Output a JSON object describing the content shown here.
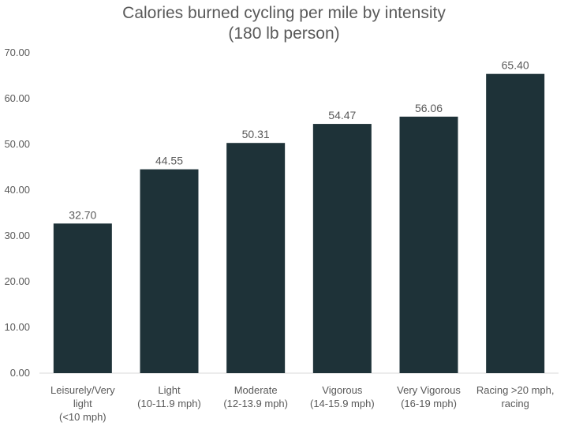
{
  "chart_data": {
    "type": "bar",
    "title": "Calories burned cycling per mile by intensity",
    "subtitle": "(180 lb person)",
    "categories": [
      [
        "Leisurely/Very",
        "light",
        "(<10 mph)"
      ],
      [
        "Light",
        "(10-11.9 mph)"
      ],
      [
        "Moderate",
        "(12-13.9 mph)"
      ],
      [
        "Vigorous",
        "(14-15.9 mph)"
      ],
      [
        "Very Vigorous",
        "(16-19 mph)"
      ],
      [
        "Racing >20 mph,",
        "racing"
      ]
    ],
    "values": [
      32.7,
      44.55,
      50.31,
      54.47,
      56.06,
      65.4
    ],
    "value_labels": [
      "32.70",
      "44.55",
      "50.31",
      "54.47",
      "56.06",
      "65.40"
    ],
    "y_ticks": [
      "0.00",
      "10.00",
      "20.00",
      "30.00",
      "40.00",
      "50.00",
      "60.00",
      "70.00"
    ],
    "ylim": [
      0,
      70
    ],
    "xlabel": "",
    "ylabel": "",
    "grid": false,
    "legend": "none",
    "colors": {
      "bar": "#1e3238",
      "text": "#595959",
      "axis": "#d9d9d9"
    }
  }
}
